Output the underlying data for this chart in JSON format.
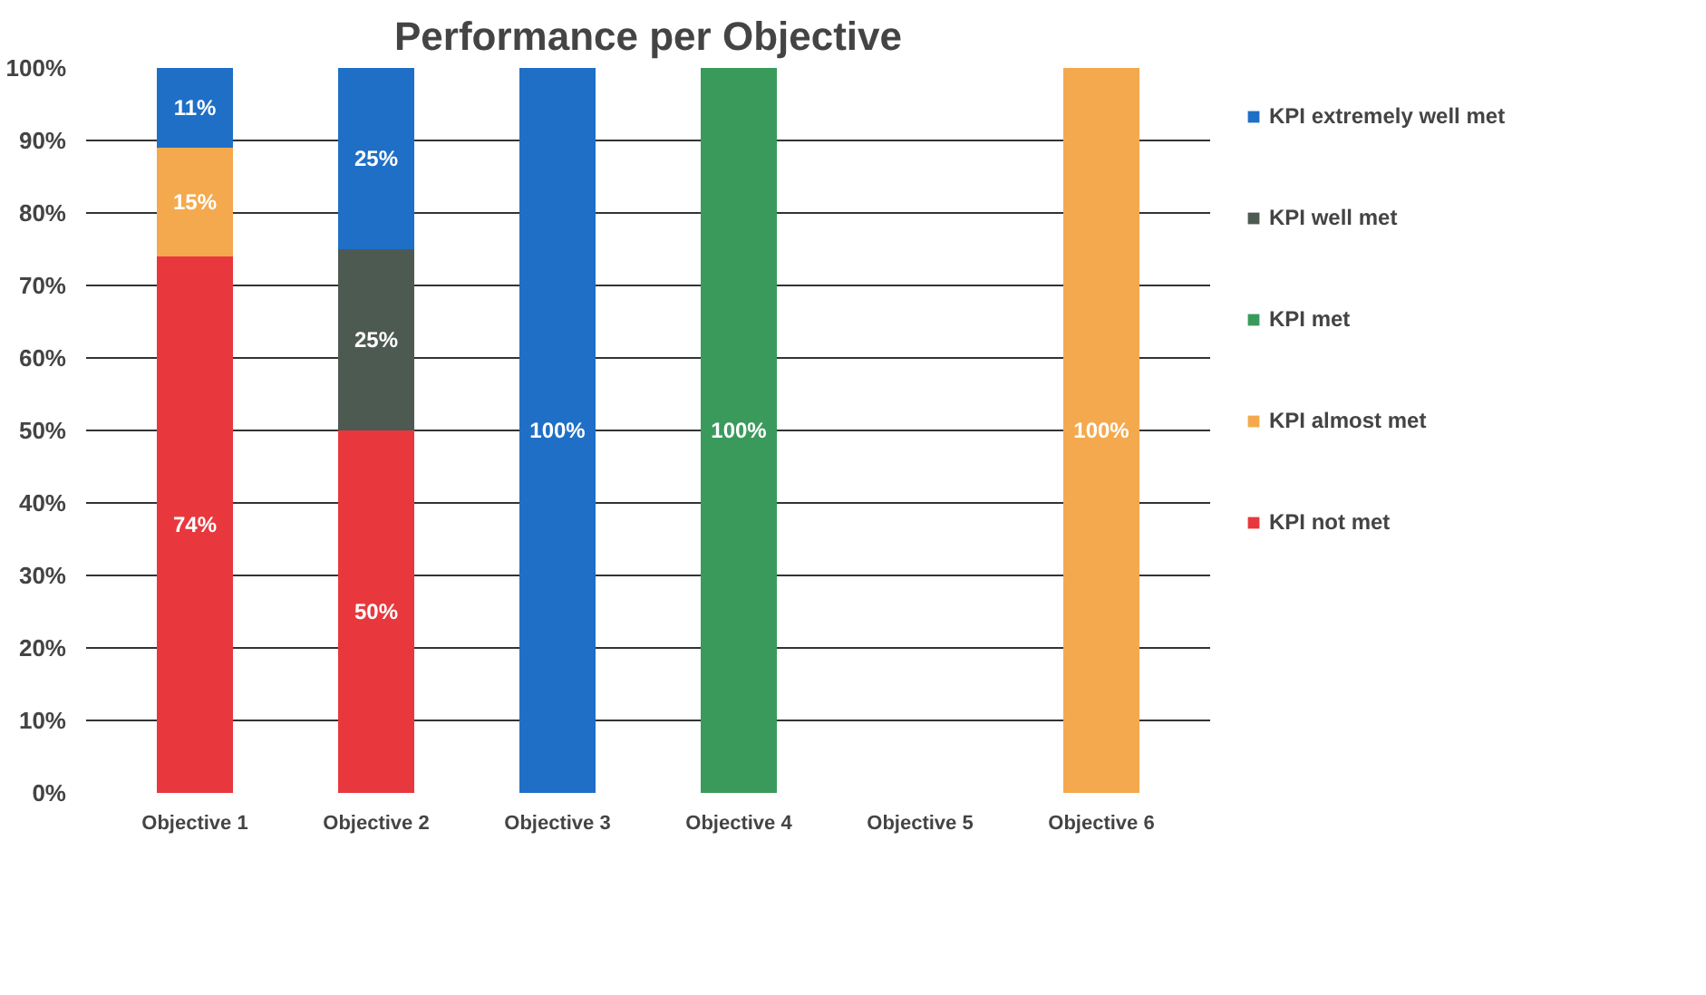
{
  "chart_data": {
    "type": "bar",
    "title": "Performance per Objective",
    "stacked": true,
    "categories": [
      "Objective 1",
      "Objective 2",
      "Objective 3",
      "Objective 4",
      "Objective 5",
      "Objective 6"
    ],
    "series": [
      {
        "name": "KPI not met",
        "color": "#e8383d",
        "values": [
          74,
          50,
          null,
          null,
          null,
          null
        ],
        "value_labels": [
          "74%",
          "50%",
          null,
          null,
          null,
          null
        ]
      },
      {
        "name": "KPI almost met",
        "color": "#f4a94e",
        "values": [
          15,
          null,
          null,
          null,
          null,
          100
        ],
        "value_labels": [
          "15%",
          null,
          null,
          null,
          null,
          "100%"
        ]
      },
      {
        "name": "KPI met",
        "color": "#3a9a5c",
        "values": [
          null,
          null,
          null,
          100,
          null,
          null
        ],
        "value_labels": [
          null,
          null,
          null,
          "100%",
          null,
          null
        ]
      },
      {
        "name": "KPI well met",
        "color": "#4d5a52",
        "values": [
          null,
          25,
          null,
          null,
          null,
          null
        ],
        "value_labels": [
          null,
          "25%",
          null,
          null,
          null,
          null
        ]
      },
      {
        "name": "KPI extremely well met",
        "color": "#1f6fc6",
        "values": [
          11,
          25,
          100,
          null,
          null,
          null
        ],
        "value_labels": [
          "11%",
          "25%",
          "100%",
          null,
          null,
          null
        ]
      }
    ],
    "ylim": [
      0,
      100
    ],
    "yticks": [
      {
        "value": 0,
        "label": "0%"
      },
      {
        "value": 10,
        "label": "10%"
      },
      {
        "value": 20,
        "label": "20%"
      },
      {
        "value": 30,
        "label": "30%"
      },
      {
        "value": 40,
        "label": "40%"
      },
      {
        "value": 50,
        "label": "50%"
      },
      {
        "value": 60,
        "label": "60%"
      },
      {
        "value": 70,
        "label": "70%"
      },
      {
        "value": 80,
        "label": "80%"
      },
      {
        "value": 90,
        "label": "90%"
      },
      {
        "value": 100,
        "label": "100%"
      }
    ],
    "grid": "y",
    "legend": "right"
  }
}
